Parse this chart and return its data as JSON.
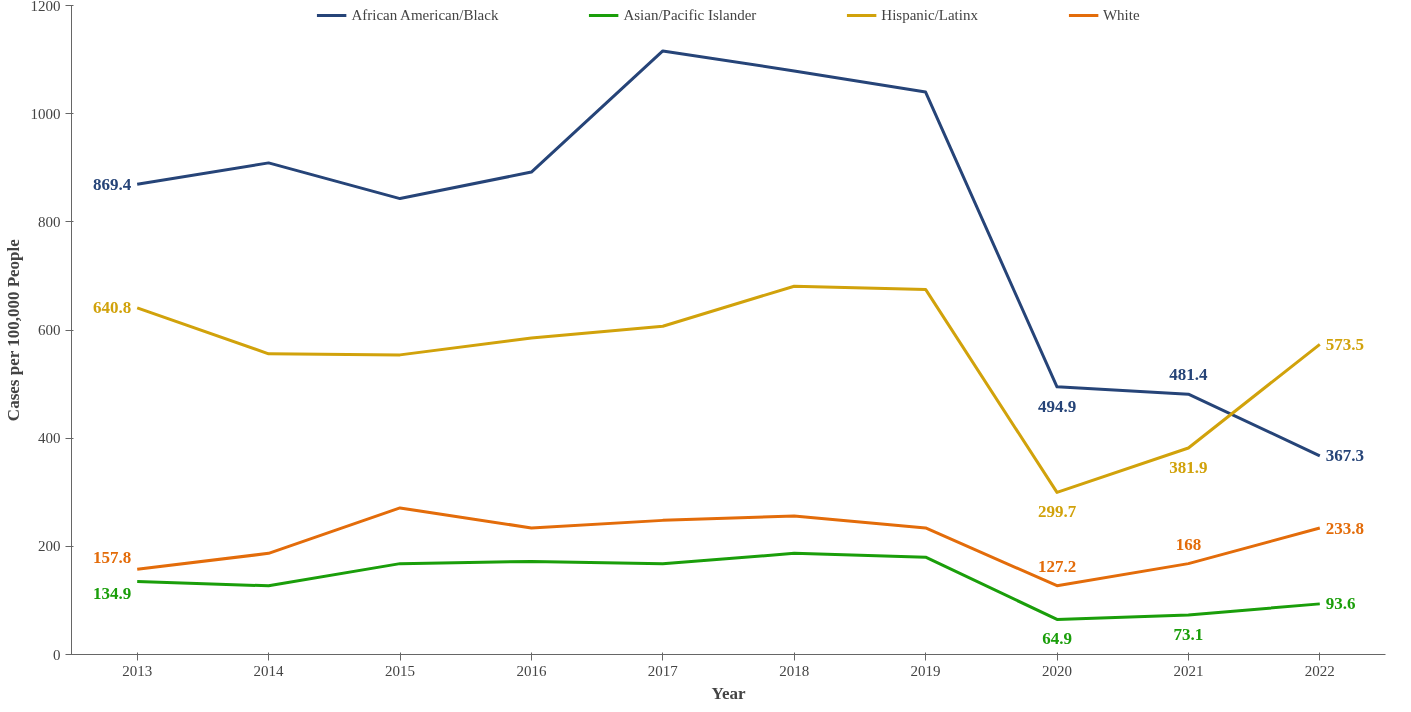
{
  "chart_data": {
    "type": "line",
    "xlabel": "Year",
    "ylabel": "Cases per 100,000 People",
    "categories": [
      "2013",
      "2014",
      "2015",
      "2016",
      "2017",
      "2018",
      "2019",
      "2020",
      "2021",
      "2022"
    ],
    "ylim": [
      0,
      1200
    ],
    "yticks": [
      0,
      200,
      400,
      600,
      800,
      1000,
      1200
    ],
    "grid": false,
    "legend": "top",
    "marker": "none",
    "line_style": "solid",
    "series": [
      {
        "name": "African American/Black",
        "color": "#264478",
        "values": [
          869.4,
          909,
          843,
          892,
          1116,
          1079,
          1040,
          494.9,
          481.4,
          367.3
        ],
        "value_labels": [
          "869.4",
          null,
          null,
          null,
          null,
          null,
          null,
          "494.9",
          "481.4",
          "367.3"
        ]
      },
      {
        "name": "Asian/Pacific Islander",
        "color": "#1a9e0a",
        "values": [
          134.9,
          127,
          168,
          172,
          168,
          187,
          180,
          64.9,
          73.1,
          93.6
        ],
        "value_labels": [
          "134.9",
          null,
          null,
          null,
          null,
          null,
          null,
          "64.9",
          "73.1",
          "93.6"
        ]
      },
      {
        "name": "Hispanic/Latinx",
        "color": "#d1a20b",
        "values": [
          640.8,
          556,
          554,
          585,
          607,
          681,
          675,
          299.7,
          381.9,
          573.5
        ],
        "value_labels": [
          "640.8",
          null,
          null,
          null,
          null,
          null,
          null,
          "299.7",
          "381.9",
          "573.5"
        ]
      },
      {
        "name": "White",
        "color": "#e36c0a",
        "values": [
          157.8,
          187,
          271,
          234,
          248,
          256,
          234,
          127.2,
          168,
          233.8
        ],
        "value_labels": [
          "157.8",
          null,
          null,
          null,
          null,
          null,
          null,
          "127.2",
          "168",
          "233.8"
        ]
      }
    ]
  }
}
